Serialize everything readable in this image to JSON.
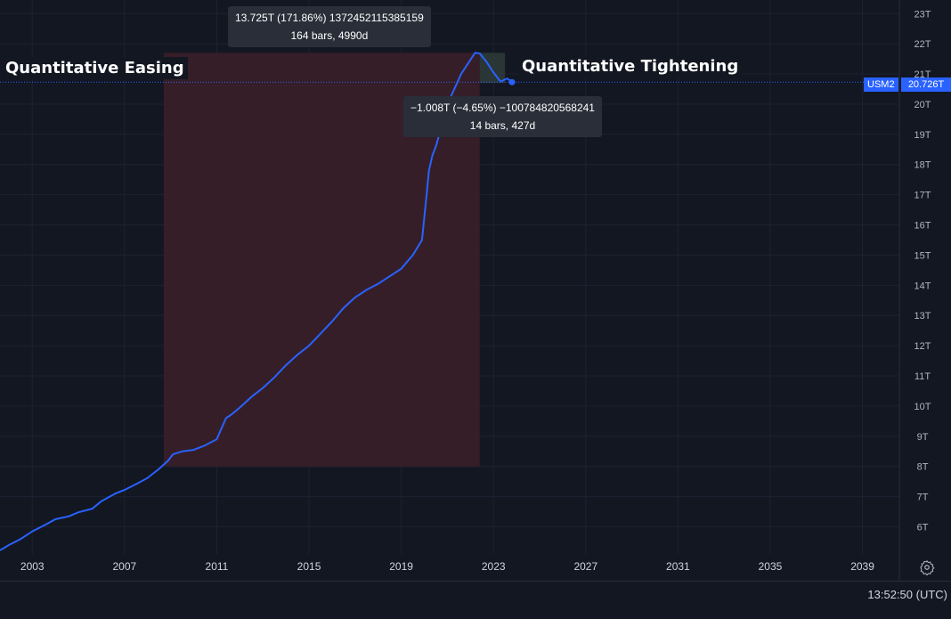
{
  "chart_data": {
    "type": "line",
    "symbol": "USM2",
    "last_value_label": "20.726T",
    "x_ticks": [
      "2003",
      "2007",
      "2011",
      "2015",
      "2019",
      "2023",
      "2027",
      "2031",
      "2035",
      "2039"
    ],
    "y_ticks": [
      "6T",
      "7T",
      "8T",
      "9T",
      "10T",
      "11T",
      "12T",
      "13T",
      "14T",
      "15T",
      "16T",
      "17T",
      "18T",
      "19T",
      "20T",
      "21T",
      "22T",
      "23T"
    ],
    "xlim": [
      2001.6,
      2040.6
    ],
    "ylim": [
      5.1,
      23.45
    ],
    "series": [
      {
        "color": "#2962ff",
        "x": [
          2001.6,
          2002.0,
          2002.5,
          2003.0,
          2003.6,
          2004.0,
          2004.6,
          2005.0,
          2005.6,
          2006.0,
          2006.6,
          2007.0,
          2007.6,
          2008.0,
          2008.5,
          2008.9,
          2009.1,
          2009.5,
          2010.0,
          2010.5,
          2011.0,
          2011.4,
          2011.6,
          2012.0,
          2012.5,
          2013.0,
          2013.5,
          2014.0,
          2014.5,
          2015.0,
          2015.5,
          2016.0,
          2016.5,
          2017.0,
          2017.5,
          2018.0,
          2018.5,
          2019.0,
          2019.5,
          2019.9,
          2020.1,
          2020.2,
          2020.35,
          2020.5,
          2020.8,
          2021.0,
          2021.3,
          2021.6,
          2021.9,
          2022.2,
          2022.4,
          2022.7,
          2023.0,
          2023.3,
          2023.6,
          2023.8
        ],
        "y": [
          5.22,
          5.4,
          5.6,
          5.85,
          6.08,
          6.25,
          6.35,
          6.48,
          6.6,
          6.85,
          7.1,
          7.22,
          7.45,
          7.62,
          7.92,
          8.2,
          8.4,
          8.5,
          8.55,
          8.7,
          8.9,
          9.6,
          9.7,
          9.95,
          10.3,
          10.6,
          10.95,
          11.35,
          11.7,
          12.0,
          12.4,
          12.8,
          13.25,
          13.6,
          13.85,
          14.05,
          14.3,
          14.55,
          15.0,
          15.5,
          17.0,
          17.8,
          18.3,
          18.6,
          19.4,
          20.0,
          20.5,
          21.0,
          21.35,
          21.7,
          21.68,
          21.4,
          21.05,
          20.75,
          20.85,
          20.73
        ]
      }
    ],
    "annotations": [
      {
        "text": "Quantitative Easing"
      },
      {
        "text": "Quantitative Tightening"
      }
    ],
    "measurements": [
      {
        "line1": "13.725T (171.86%) 1372452115385159",
        "line2": "164 bars, 4990d"
      },
      {
        "line1": "−1.008T (−4.65%) −100784820568241",
        "line2": "14 bars, 427d"
      }
    ],
    "easing_range": {
      "x": [
        2008.7,
        2022.4
      ],
      "y": [
        8.0,
        21.7
      ]
    },
    "tightening_range": {
      "x": [
        2022.4,
        2023.5
      ],
      "y": [
        20.7,
        21.7
      ]
    },
    "colors": {
      "background": "#131722",
      "line": "#2962ff",
      "easing_fill": "#3a1f29",
      "tightening_fill": "#2e3a37"
    }
  },
  "footer": {
    "time": "13:52:50 (UTC)"
  },
  "icons": {
    "settings": "gear-icon"
  }
}
